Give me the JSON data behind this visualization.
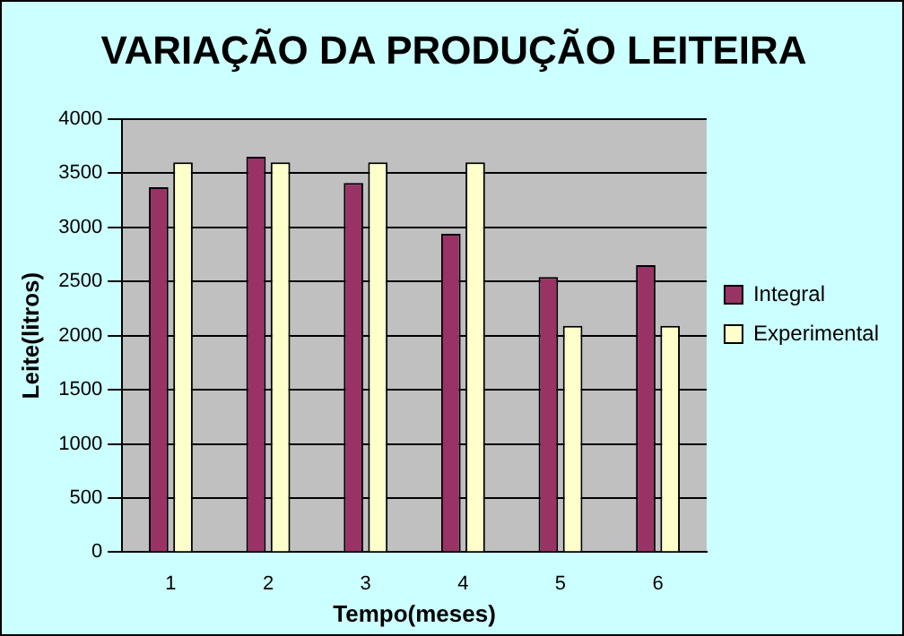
{
  "chart_data": {
    "type": "bar",
    "title": "VARIAÇÃO DA PRODUÇÃO LEITEIRA",
    "xlabel": "Tempo(meses)",
    "ylabel": "Leite(litros)",
    "categories": [
      "1",
      "2",
      "3",
      "4",
      "5",
      "6"
    ],
    "series": [
      {
        "name": "Integral",
        "color": "#993366",
        "values": [
          3370,
          3650,
          3410,
          2940,
          2540,
          2650
        ]
      },
      {
        "name": "Experimental",
        "color": "#ffffcc",
        "values": [
          3600,
          3600,
          3600,
          3600,
          2090,
          2090
        ]
      }
    ],
    "ylim": [
      0,
      4000
    ],
    "yticks": [
      0,
      500,
      1000,
      1500,
      2000,
      2500,
      3000,
      3500,
      4000
    ],
    "grid": "y",
    "legend": "right"
  }
}
